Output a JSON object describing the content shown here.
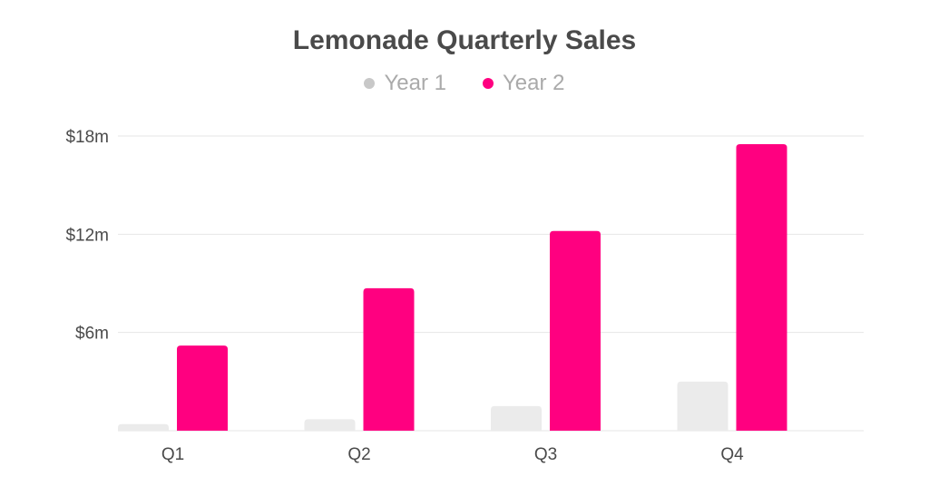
{
  "chart_data": {
    "type": "bar",
    "title": "Lemonade Quarterly Sales",
    "categories": [
      "Q1",
      "Q2",
      "Q3",
      "Q4"
    ],
    "series": [
      {
        "name": "Year 1",
        "values": [
          0.4,
          0.7,
          1.5,
          3.0
        ],
        "color": "#ebebeb"
      },
      {
        "name": "Year 2",
        "values": [
          5.2,
          8.7,
          12.2,
          17.5
        ],
        "color": "#ff0080"
      }
    ],
    "y_ticks": [
      6,
      12,
      18
    ],
    "y_tick_labels": [
      "$6m",
      "$12m",
      "$18m"
    ],
    "ylim": [
      0,
      18
    ],
    "grid": true,
    "legend_position": "top-center"
  }
}
